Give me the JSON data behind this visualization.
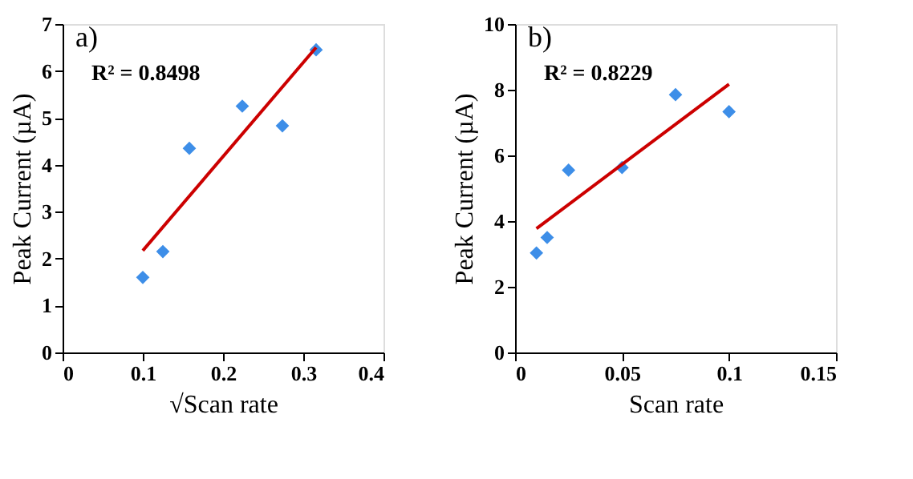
{
  "chart_data": [
    {
      "type": "scatter",
      "title": "a)",
      "xlabel": "√Scan rate",
      "ylabel": "Peak Current (µA)",
      "annotations": [
        "R² = 0.8498"
      ],
      "xlim": [
        0,
        0.4
      ],
      "xticks": [
        0,
        0.1,
        0.2,
        0.3,
        0.4
      ],
      "ylim": [
        0,
        7
      ],
      "yticks": [
        0,
        1,
        2,
        3,
        4,
        5,
        6,
        7
      ],
      "grid": false,
      "series": [
        {
          "marker": "diamond",
          "color": "#3d8ee8",
          "x": [
            0.1,
            0.125,
            0.158,
            0.224,
            0.274,
            0.316
          ],
          "values": [
            1.6,
            2.15,
            4.35,
            5.25,
            4.83,
            6.45
          ]
        },
        {
          "type": "line",
          "marker": "none",
          "line_style": "solid",
          "color": "#cc0000",
          "x": [
            0.1,
            0.316
          ],
          "values": [
            2.17,
            6.5
          ]
        }
      ]
    },
    {
      "type": "scatter",
      "title": "b)",
      "xlabel": "Scan rate",
      "ylabel": "Peak Current (µA)",
      "annotations": [
        "R² = 0.8229"
      ],
      "xlim": [
        0,
        0.15
      ],
      "xticks": [
        0,
        0.05,
        0.1,
        0.15
      ],
      "ylim": [
        0,
        10
      ],
      "yticks": [
        0,
        2,
        4,
        6,
        8,
        10
      ],
      "grid": false,
      "series": [
        {
          "marker": "diamond",
          "color": "#3d8ee8",
          "x": [
            0.01,
            0.015,
            0.025,
            0.05,
            0.075,
            0.1
          ],
          "values": [
            3.03,
            3.5,
            5.55,
            5.63,
            7.85,
            7.33
          ]
        },
        {
          "type": "line",
          "marker": "none",
          "line_style": "solid",
          "color": "#cc0000",
          "x": [
            0.01,
            0.1
          ],
          "values": [
            3.77,
            8.17
          ]
        }
      ]
    }
  ]
}
